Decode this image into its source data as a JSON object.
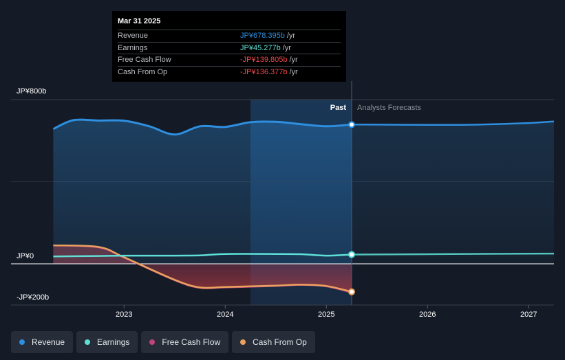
{
  "chart_data": {
    "type": "area",
    "y_axis": {
      "top_label": "JP¥800b",
      "zero_label": "JP¥0",
      "bottom_label": "-JP¥200b",
      "ylim": [
        -200,
        800
      ]
    },
    "x_axis": {
      "ticks": [
        "2023",
        "2024",
        "2025",
        "2026",
        "2027"
      ],
      "xlim": [
        2022.1,
        2027.25
      ]
    },
    "divider_labels": {
      "past": "Past",
      "forecast": "Analysts Forecasts"
    },
    "divider_x": 2025.25,
    "highlight_range": [
      2024.25,
      2025.25
    ],
    "series": [
      {
        "name": "Revenue",
        "color": "#2e8fe0",
        "x": [
          2022.3,
          2022.5,
          2022.75,
          2023.0,
          2023.25,
          2023.5,
          2023.75,
          2024.0,
          2024.25,
          2024.5,
          2024.75,
          2025.0,
          2025.25
        ],
        "values": [
          657,
          700,
          698,
          697,
          670,
          630,
          670,
          667,
          690,
          692,
          680,
          670,
          678.4
        ],
        "forecast_x": [
          2025.25,
          2025.5,
          2026.0,
          2026.25,
          2026.5,
          2027.0,
          2027.25
        ],
        "forecast_values": [
          678.4,
          678,
          677,
          677,
          678,
          686,
          694
        ]
      },
      {
        "name": "Earnings",
        "color": "#5ee0d6",
        "x": [
          2022.3,
          2022.75,
          2023.0,
          2023.5,
          2023.75,
          2024.0,
          2024.5,
          2024.75,
          2025.0,
          2025.25
        ],
        "values": [
          36,
          38,
          40,
          40,
          41,
          48,
          48,
          47,
          40,
          45.3
        ],
        "forecast_x": [
          2025.25,
          2026.0,
          2027.25
        ],
        "forecast_values": [
          45.3,
          47,
          50
        ]
      },
      {
        "name": "Free Cash Flow",
        "color": "#c0447a",
        "x": [
          2022.3,
          2022.75,
          2023.0,
          2023.5,
          2023.75,
          2024.0,
          2024.5,
          2024.75,
          2025.0,
          2025.25
        ],
        "values": [
          90,
          80,
          30,
          -80,
          -117,
          -115,
          -108,
          -103,
          -110,
          -139.8
        ]
      },
      {
        "name": "Cash From Op",
        "color": "#e9a15e",
        "x": [
          2022.3,
          2022.75,
          2023.0,
          2023.5,
          2023.75,
          2024.0,
          2024.5,
          2024.75,
          2025.0,
          2025.25
        ],
        "values": [
          90,
          82,
          32,
          -78,
          -115,
          -113,
          -106,
          -101,
          -108,
          -136.4
        ]
      }
    ]
  },
  "tooltip": {
    "date": "Mar 31 2025",
    "rows": [
      {
        "label": "Revenue",
        "value": "JP¥678.395b",
        "unit": "/yr",
        "color": "#2e8fe0"
      },
      {
        "label": "Earnings",
        "value": "JP¥45.277b",
        "unit": "/yr",
        "color": "#5ee0d6"
      },
      {
        "label": "Free Cash Flow",
        "value": "-JP¥139.805b",
        "unit": "/yr",
        "color": "#f0474c"
      },
      {
        "label": "Cash From Op",
        "value": "-JP¥136.377b",
        "unit": "/yr",
        "color": "#f0474c"
      }
    ]
  },
  "legend": [
    {
      "label": "Revenue",
      "color": "#2e8fe0"
    },
    {
      "label": "Earnings",
      "color": "#5ee0d6"
    },
    {
      "label": "Free Cash Flow",
      "color": "#c0447a"
    },
    {
      "label": "Cash From Op",
      "color": "#e9a15e"
    }
  ]
}
